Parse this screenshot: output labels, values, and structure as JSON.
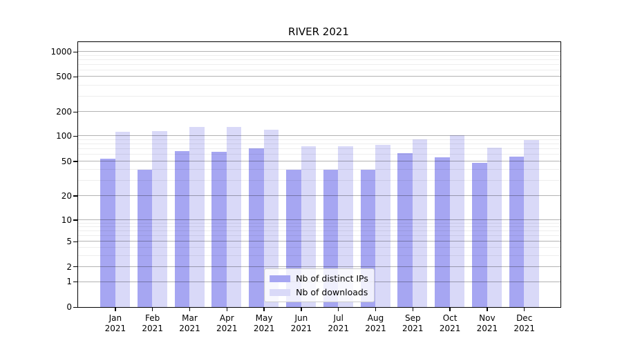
{
  "title": "RIVER 2021",
  "colors": {
    "ip_bar": "#a6a6f2",
    "dl_bar": "#d9d9f8",
    "axis": "#000000",
    "major_grid": "#b0b0b0",
    "minor_grid": "#ebebeb",
    "legend_border": "#cccccc",
    "background": "#ffffff"
  },
  "chart_data": {
    "type": "bar",
    "title": "RIVER 2021",
    "categories": [
      "Jan 2021",
      "Feb 2021",
      "Mar 2021",
      "Apr 2021",
      "May 2021",
      "Jun 2021",
      "Jul 2021",
      "Aug 2021",
      "Sep 2021",
      "Oct 2021",
      "Nov 2021",
      "Dec 2021"
    ],
    "series": [
      {
        "name": "Nb of distinct IPs",
        "color": "#a6a6f2",
        "values": [
          53,
          40,
          66,
          64,
          71,
          40,
          40,
          40,
          62,
          56,
          48,
          57
        ]
      },
      {
        "name": "Nb of downloads",
        "color": "#d9d9f8",
        "values": [
          113,
          114,
          130,
          128,
          120,
          75,
          75,
          78,
          91,
          102,
          72,
          89
        ]
      }
    ],
    "xlabel": "",
    "ylabel": "",
    "yscale": "symlog",
    "ylim": [
      0,
      1000
    ],
    "yticks": [
      0,
      1,
      2,
      5,
      10,
      20,
      50,
      100,
      200,
      500,
      1000
    ],
    "grid": true,
    "legend_entries": [
      "Nb of distinct IPs",
      "Nb of downloads"
    ],
    "legend_position": "lower center"
  }
}
